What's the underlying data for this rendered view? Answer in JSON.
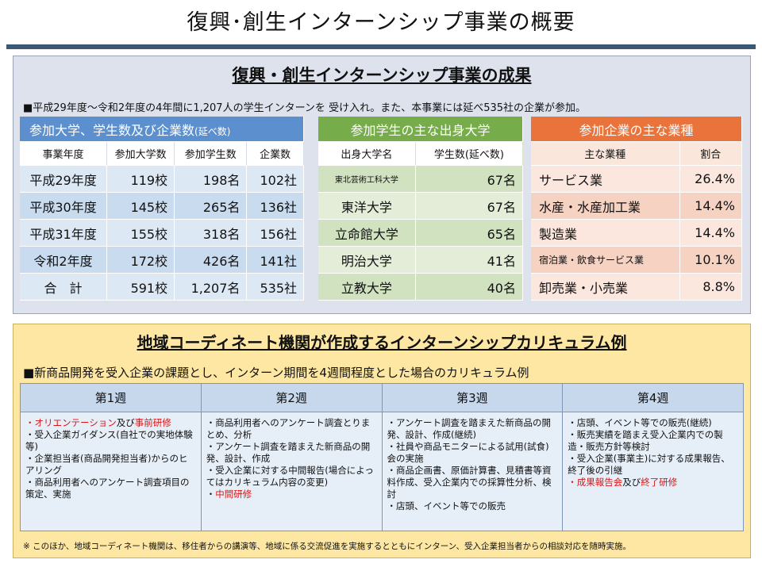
{
  "title": "復興･創生インターンシップ事業の概要",
  "section1": {
    "title": "復興・創生インターンシップ事業の成果",
    "note": "■平成29年度～令和2年度の4年間に1,207人の学生インターンを 受け入れ。また、本事業には延べ535社の企業が参加。",
    "table_a": {
      "header_main": "参加大学、学生数及び企業数",
      "header_suffix": "(延べ数)",
      "columns": [
        "事業年度",
        "参加大学数",
        "参加学生数",
        "企業数"
      ],
      "rows": [
        [
          "平成29年度",
          "119校",
          "198名",
          "102社"
        ],
        [
          "平成30年度",
          "145校",
          "265名",
          "136社"
        ],
        [
          "平成31年度",
          "155校",
          "318名",
          "156社"
        ],
        [
          "令和2年度",
          "172校",
          "426名",
          "141社"
        ],
        [
          "合　計",
          "591校",
          "1,207名",
          "535社"
        ]
      ]
    },
    "table_b": {
      "header": "参加学生の主な出身大学",
      "columns": [
        "出身大学名",
        "学生数(延べ数)"
      ],
      "rows": [
        [
          "東北芸術工科大学",
          "67名"
        ],
        [
          "東洋大学",
          "67名"
        ],
        [
          "立命館大学",
          "65名"
        ],
        [
          "明治大学",
          "41名"
        ],
        [
          "立教大学",
          "40名"
        ]
      ]
    },
    "table_c": {
      "header": "参加企業の主な業種",
      "columns": [
        "主な業種",
        "割合"
      ],
      "rows": [
        [
          "サービス業",
          "26.4%"
        ],
        [
          "水産・水産加工業",
          "14.4%"
        ],
        [
          "製造業",
          "14.4%"
        ],
        [
          "宿泊業・飲食サービス業",
          "10.1%"
        ],
        [
          "卸売業・小売業",
          "8.8%"
        ]
      ]
    }
  },
  "section2": {
    "title": "地域コーディネート機関が作成するインターンシップカリキュラム例",
    "note": "■新商品開発を受入企業の課題とし、インターン期間を4週間程度とした場合のカリキュラム例",
    "weeks": [
      {
        "label": "第1週",
        "l1_red": "・オリエンテーション",
        "l1_mid": "及び",
        "l1_red2": "事前研修",
        "l2": "・受入企業ガイダンス(自社での実地体験等)",
        "l3": "・企業担当者(商品開発担当者)からのヒアリング",
        "l4": "・商品利用者へのアンケート調査項目の策定、実施"
      },
      {
        "label": "第2週",
        "l1": "・商品利用者へのアンケート調査とりまとめ、分析",
        "l2": "・アンケート調査を踏まえた新商品の開発、設計、作成",
        "l3": "・受入企業に対する中間報告(場合によってはカリキュラム内容の変更)",
        "l4_pre": "・",
        "l4_red": "中間研修"
      },
      {
        "label": "第3週",
        "l1": "・アンケート調査を踏まえた新商品の開発、設計、作成(継続)",
        "l2": "・社員や商品モニターによる試用(試食)会の実施",
        "l3": "・商品企画書、原価計算書、見積書等資料作成、受入企業内での採算性分析、検討",
        "l4": "・店頭、イベント等での販売"
      },
      {
        "label": "第4週",
        "l1": "・店頭、イベント等での販売(継続)",
        "l2": "・販売実績を踏まえ受入企業内での製造・販売方針等検討",
        "l3": "・受入企業(事業主)に対する成果報告、終了後の引継",
        "l4_red": "・成果報告会",
        "l4_mid": "及び",
        "l4_red2": "終了研修"
      }
    ],
    "footnote": "※ このほか、地域コーディネート機関は、移住者からの講演等、地域に係る交流促進を実施するとともにインターン、受入企業担当者からの相談対応を随時実施。"
  },
  "colors": {
    "title_bar": "#3b5876",
    "blue_header": "#5b8fce",
    "green_header": "#76ad4a",
    "orange_header": "#e9733a",
    "accent_red": "#d81818"
  }
}
